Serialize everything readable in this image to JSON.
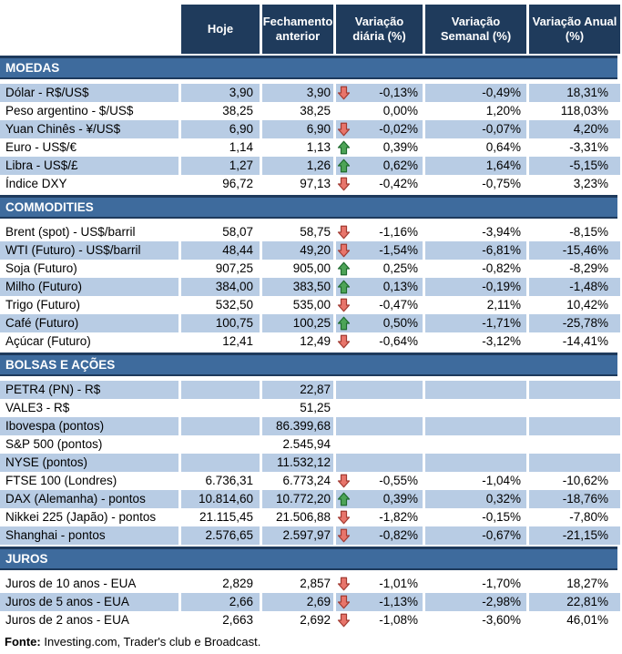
{
  "chart_data": {
    "type": "table",
    "columns": [
      "Hoje",
      "Fechamento anterior",
      "Variação diária (%)",
      "Variação Semanal (%)",
      "Variação Anual (%)"
    ],
    "sections": [
      {
        "title": "MOEDAS",
        "rows": [
          {
            "label": "Dólar - R$/US$",
            "hoje": "3,90",
            "fechamento": "3,90",
            "arrow": "down",
            "variacao_diaria": "-0,13%",
            "variacao_semanal": "-0,49%",
            "variacao_anual": "18,31%"
          },
          {
            "label": "Peso argentino - $/US$",
            "hoje": "38,25",
            "fechamento": "38,25",
            "arrow": "none",
            "variacao_diaria": "0,00%",
            "variacao_semanal": "1,20%",
            "variacao_anual": "118,03%"
          },
          {
            "label": "Yuan Chinês - ¥/US$",
            "hoje": "6,90",
            "fechamento": "6,90",
            "arrow": "down",
            "variacao_diaria": "-0,02%",
            "variacao_semanal": "-0,07%",
            "variacao_anual": "4,20%"
          },
          {
            "label": "Euro - US$/€",
            "hoje": "1,14",
            "fechamento": "1,13",
            "arrow": "up",
            "variacao_diaria": "0,39%",
            "variacao_semanal": "0,64%",
            "variacao_anual": "-3,31%"
          },
          {
            "label": "Libra - US$/£",
            "hoje": "1,27",
            "fechamento": "1,26",
            "arrow": "up",
            "variacao_diaria": "0,62%",
            "variacao_semanal": "1,64%",
            "variacao_anual": "-5,15%"
          },
          {
            "label": "Índice DXY",
            "hoje": "96,72",
            "fechamento": "97,13",
            "arrow": "down",
            "variacao_diaria": "-0,42%",
            "variacao_semanal": "-0,75%",
            "variacao_anual": "3,23%"
          }
        ]
      },
      {
        "title": "COMMODITIES",
        "rows": [
          {
            "label": "Brent (spot) - US$/barril",
            "hoje": "58,07",
            "fechamento": "58,75",
            "arrow": "down",
            "variacao_diaria": "-1,16%",
            "variacao_semanal": "-3,94%",
            "variacao_anual": "-8,15%"
          },
          {
            "label": "WTI (Futuro) - US$/barril",
            "hoje": "48,44",
            "fechamento": "49,20",
            "arrow": "down",
            "variacao_diaria": "-1,54%",
            "variacao_semanal": "-6,81%",
            "variacao_anual": "-15,46%"
          },
          {
            "label": "Soja (Futuro)",
            "hoje": "907,25",
            "fechamento": "905,00",
            "arrow": "up",
            "variacao_diaria": "0,25%",
            "variacao_semanal": "-0,82%",
            "variacao_anual": "-8,29%"
          },
          {
            "label": "Milho (Futuro)",
            "hoje": "384,00",
            "fechamento": "383,50",
            "arrow": "up",
            "variacao_diaria": "0,13%",
            "variacao_semanal": "-0,19%",
            "variacao_anual": "-1,48%"
          },
          {
            "label": "Trigo (Futuro)",
            "hoje": "532,50",
            "fechamento": "535,00",
            "arrow": "down",
            "variacao_diaria": "-0,47%",
            "variacao_semanal": "2,11%",
            "variacao_anual": "10,42%"
          },
          {
            "label": "Café (Futuro)",
            "hoje": "100,75",
            "fechamento": "100,25",
            "arrow": "up",
            "variacao_diaria": "0,50%",
            "variacao_semanal": "-1,71%",
            "variacao_anual": "-25,78%"
          },
          {
            "label": "Açúcar (Futuro)",
            "hoje": "12,41",
            "fechamento": "12,49",
            "arrow": "down",
            "variacao_diaria": "-0,64%",
            "variacao_semanal": "-3,12%",
            "variacao_anual": "-14,41%"
          }
        ]
      },
      {
        "title": "BOLSAS E AÇÕES",
        "rows": [
          {
            "label": "PETR4 (PN) - R$",
            "hoje": "",
            "fechamento": "22,87",
            "arrow": "none",
            "variacao_diaria": "",
            "variacao_semanal": "",
            "variacao_anual": ""
          },
          {
            "label": "VALE3 - R$",
            "hoje": "",
            "fechamento": "51,25",
            "arrow": "none",
            "variacao_diaria": "",
            "variacao_semanal": "",
            "variacao_anual": ""
          },
          {
            "label": "Ibovespa (pontos)",
            "hoje": "",
            "fechamento": "86.399,68",
            "arrow": "none",
            "variacao_diaria": "",
            "variacao_semanal": "",
            "variacao_anual": ""
          },
          {
            "label": "S&P 500 (pontos)",
            "hoje": "",
            "fechamento": "2.545,94",
            "arrow": "none",
            "variacao_diaria": "",
            "variacao_semanal": "",
            "variacao_anual": ""
          },
          {
            "label": "NYSE (pontos)",
            "hoje": "",
            "fechamento": "11.532,12",
            "arrow": "none",
            "variacao_diaria": "",
            "variacao_semanal": "",
            "variacao_anual": ""
          },
          {
            "label": "FTSE 100 (Londres)",
            "hoje": "6.736,31",
            "fechamento": "6.773,24",
            "arrow": "down",
            "variacao_diaria": "-0,55%",
            "variacao_semanal": "-1,04%",
            "variacao_anual": "-10,62%"
          },
          {
            "label": "DAX (Alemanha) - pontos",
            "hoje": "10.814,60",
            "fechamento": "10.772,20",
            "arrow": "up",
            "variacao_diaria": "0,39%",
            "variacao_semanal": "0,32%",
            "variacao_anual": "-18,76%"
          },
          {
            "label": "Nikkei 225 (Japão) - pontos",
            "hoje": "21.115,45",
            "fechamento": "21.506,88",
            "arrow": "down",
            "variacao_diaria": "-1,82%",
            "variacao_semanal": "-0,15%",
            "variacao_anual": "-7,80%"
          },
          {
            "label": "Shanghai - pontos",
            "hoje": "2.576,65",
            "fechamento": "2.597,97",
            "arrow": "down",
            "variacao_diaria": "-0,82%",
            "variacao_semanal": "-0,67%",
            "variacao_anual": "-21,15%"
          }
        ]
      },
      {
        "title": "JUROS",
        "rows": [
          {
            "label": "Juros de 10 anos - EUA",
            "hoje": "2,829",
            "fechamento": "2,857",
            "arrow": "down",
            "variacao_diaria": "-1,01%",
            "variacao_semanal": "-1,70%",
            "variacao_anual": "18,27%"
          },
          {
            "label": "Juros de 5 anos - EUA",
            "hoje": "2,66",
            "fechamento": "2,69",
            "arrow": "down",
            "variacao_diaria": "-1,13%",
            "variacao_semanal": "-2,98%",
            "variacao_anual": "22,81%"
          },
          {
            "label": "Juros de 2 anos - EUA",
            "hoje": "2,663",
            "fechamento": "2,692",
            "arrow": "down",
            "variacao_diaria": "-1,08%",
            "variacao_semanal": "-3,60%",
            "variacao_anual": "46,01%"
          }
        ]
      }
    ]
  },
  "footer": {
    "label": "Fonte:",
    "text": " Investing.com, Trader's club e Broadcast."
  },
  "icons": {
    "up": "up-arrow-icon",
    "down": "down-arrow-icon"
  },
  "colors": {
    "header_bg": "#1F3B5C",
    "section_bg": "#3E6B9D",
    "section_border": "#1E3A5C",
    "row_alt_bg": "#B8CCE4",
    "row_bg": "#FFFFFF",
    "up_arrow_fill": "#4DA457",
    "up_arrow_border": "#1F6B2F",
    "down_arrow_fill": "#E8756B",
    "down_arrow_border": "#A23B32",
    "text": "#000000",
    "header_text": "#FFFFFF"
  }
}
